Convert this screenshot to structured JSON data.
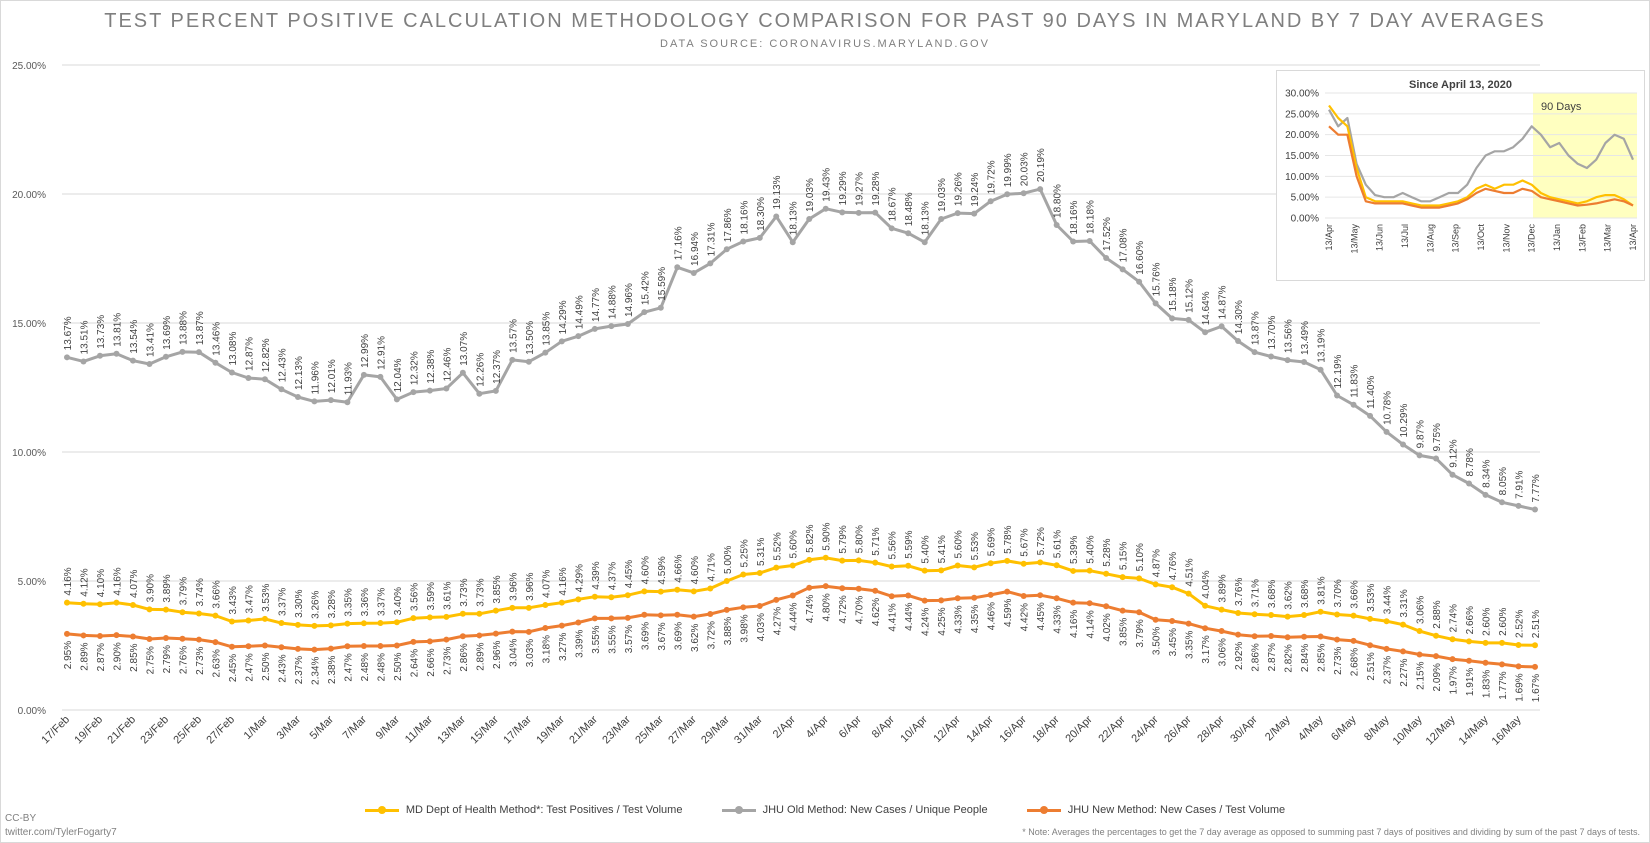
{
  "chart_data": [
    {
      "type": "line",
      "title": "TEST PERCENT POSITIVE CALCULATION METHODOLOGY COMPARISON FOR PAST 90 DAYS IN MARYLAND BY 7 DAY AVERAGES",
      "subtitle": "DATA SOURCE: CORONAVIRUS.MARYLAND.GOV",
      "xlabel": "",
      "ylabel": "",
      "ylim": [
        0,
        25
      ],
      "yticks": [
        "0.00%",
        "5.00%",
        "10.00%",
        "15.00%",
        "20.00%",
        "25.00%"
      ],
      "x_tick_labels": [
        "17/Feb",
        "19/Feb",
        "21/Feb",
        "23/Feb",
        "25/Feb",
        "27/Feb",
        "1/Mar",
        "3/Mar",
        "5/Mar",
        "7/Mar",
        "9/Mar",
        "11/Mar",
        "13/Mar",
        "15/Mar",
        "17/Mar",
        "19/Mar",
        "21/Mar",
        "23/Mar",
        "25/Mar",
        "27/Mar",
        "29/Mar",
        "31/Mar",
        "2/Apr",
        "4/Apr",
        "6/Apr",
        "8/Apr",
        "10/Apr",
        "12/Apr",
        "14/Apr",
        "16/Apr",
        "18/Apr",
        "20/Apr",
        "22/Apr",
        "24/Apr",
        "26/Apr",
        "28/Apr",
        "30/Apr",
        "2/May",
        "4/May",
        "6/May",
        "8/May",
        "10/May",
        "12/May",
        "14/May",
        "16/May"
      ],
      "grid": "horizontal",
      "legend_position": "bottom",
      "series": [
        {
          "name": "JHU Old Method: New Cases / Unique People",
          "color": "#a5a5a5",
          "values": [
            13.67,
            13.51,
            13.73,
            13.81,
            13.54,
            13.41,
            13.69,
            13.88,
            13.87,
            13.46,
            13.08,
            12.87,
            12.82,
            12.43,
            12.13,
            11.96,
            12.01,
            11.93,
            12.99,
            12.91,
            12.04,
            12.32,
            12.38,
            12.46,
            13.07,
            12.26,
            12.37,
            13.57,
            13.5,
            13.85,
            14.29,
            14.49,
            14.77,
            14.88,
            14.96,
            15.42,
            15.59,
            17.16,
            16.94,
            17.31,
            17.86,
            18.16,
            18.3,
            19.13,
            18.13,
            19.03,
            19.43,
            19.29,
            19.27,
            19.28,
            18.67,
            18.48,
            18.13,
            19.03,
            19.26,
            19.24,
            19.72,
            19.99,
            20.03,
            20.19,
            18.8,
            18.16,
            18.18,
            17.52,
            17.08,
            16.6,
            15.76,
            15.18,
            15.12,
            14.64,
            14.87,
            14.3,
            13.87,
            13.7,
            13.56,
            13.49,
            13.19,
            12.19,
            11.83,
            11.4,
            10.78,
            10.29,
            9.87,
            9.75,
            9.12,
            8.78,
            8.34,
            8.05,
            7.91,
            7.77
          ]
        },
        {
          "name": "MD Dept of Health Method*: Test Positives / Test Volume",
          "color": "#ffc000",
          "values": [
            4.16,
            4.12,
            4.1,
            4.16,
            4.07,
            3.9,
            3.89,
            3.79,
            3.74,
            3.66,
            3.43,
            3.47,
            3.53,
            3.37,
            3.3,
            3.26,
            3.28,
            3.35,
            3.36,
            3.37,
            3.4,
            3.56,
            3.59,
            3.61,
            3.73,
            3.73,
            3.85,
            3.96,
            3.96,
            4.07,
            4.16,
            4.29,
            4.39,
            4.37,
            4.45,
            4.6,
            4.59,
            4.66,
            4.6,
            4.71,
            5.0,
            5.25,
            5.31,
            5.52,
            5.6,
            5.82,
            5.9,
            5.79,
            5.8,
            5.71,
            5.56,
            5.59,
            5.4,
            5.41,
            5.6,
            5.53,
            5.69,
            5.78,
            5.67,
            5.72,
            5.61,
            5.39,
            5.4,
            5.28,
            5.15,
            5.1,
            4.87,
            4.76,
            4.51,
            4.04,
            3.89,
            3.76,
            3.71,
            3.68,
            3.62,
            3.68,
            3.81,
            3.7,
            3.66,
            3.53,
            3.44,
            3.31,
            3.06,
            2.88,
            2.74,
            2.66,
            2.6,
            2.6,
            2.52,
            2.51
          ]
        },
        {
          "name": "JHU New Method: New Cases / Test Volume",
          "color": "#ed7d31",
          "values": [
            2.95,
            2.89,
            2.87,
            2.9,
            2.85,
            2.75,
            2.79,
            2.76,
            2.73,
            2.63,
            2.45,
            2.47,
            2.5,
            2.43,
            2.37,
            2.34,
            2.38,
            2.47,
            2.48,
            2.48,
            2.5,
            2.64,
            2.66,
            2.73,
            2.86,
            2.89,
            2.96,
            3.04,
            3.03,
            3.18,
            3.27,
            3.39,
            3.55,
            3.55,
            3.57,
            3.69,
            3.67,
            3.69,
            3.62,
            3.72,
            3.88,
            3.98,
            4.03,
            4.27,
            4.44,
            4.74,
            4.8,
            4.72,
            4.7,
            4.62,
            4.41,
            4.44,
            4.24,
            4.25,
            4.33,
            4.35,
            4.46,
            4.59,
            4.42,
            4.45,
            4.33,
            4.16,
            4.14,
            4.02,
            3.85,
            3.79,
            3.5,
            3.45,
            3.35,
            3.17,
            3.06,
            2.92,
            2.86,
            2.87,
            2.82,
            2.84,
            2.85,
            2.73,
            2.68,
            2.51,
            2.37,
            2.27,
            2.15,
            2.09,
            1.97,
            1.91,
            1.83,
            1.77,
            1.69,
            1.67
          ]
        }
      ]
    },
    {
      "type": "line",
      "title": "Since April 13, 2020",
      "ylim": [
        0,
        30
      ],
      "yticks": [
        "0.00%",
        "5.00%",
        "10.00%",
        "15.00%",
        "20.00%",
        "25.00%",
        "30.00%"
      ],
      "x_tick_labels": [
        "13/Apr",
        "13/May",
        "13/Jun",
        "13/Jul",
        "13/Aug",
        "13/Sep",
        "13/Oct",
        "13/Nov",
        "13/Dec",
        "13/Jan",
        "13/Feb",
        "13/Mar",
        "13/Apr"
      ],
      "highlight_label": "90 Days",
      "highlight_color": "#ffffc0",
      "series": [
        {
          "name": "JHU Old Method: New Cases / Unique People",
          "color": "#a5a5a5",
          "values": [
            26,
            22,
            24,
            13,
            8,
            5.5,
            5,
            5,
            6,
            5,
            4,
            4,
            5,
            6,
            6,
            8,
            12,
            15,
            16,
            16,
            17,
            19,
            22,
            20,
            17,
            18,
            15,
            13,
            12,
            14,
            18,
            20,
            19,
            14
          ]
        },
        {
          "name": "MD Dept of Health Method*: Test Positives / Test Volume",
          "color": "#ffc000",
          "values": [
            27,
            24,
            22,
            12,
            5,
            4,
            4,
            4,
            4,
            3.5,
            3,
            3,
            3,
            3.5,
            4,
            5,
            7,
            8,
            7,
            8,
            8,
            9,
            8,
            6,
            5,
            4.5,
            4,
            3.5,
            4,
            5,
            5.5,
            5.5,
            4.5,
            3
          ]
        },
        {
          "name": "JHU New Method: New Cases / Test Volume",
          "color": "#ed7d31",
          "values": [
            22,
            20,
            20,
            10,
            4,
            3.5,
            3.5,
            3.5,
            3.5,
            3,
            2.5,
            2.5,
            2.5,
            3,
            3.5,
            4.5,
            6,
            7,
            6.5,
            6,
            6,
            7,
            6.5,
            5,
            4.5,
            4,
            3.5,
            3,
            3.2,
            3.5,
            4,
            4.5,
            4,
            3
          ]
        }
      ]
    }
  ],
  "legend": {
    "md_label": "MD Dept of Health Method*: Test Positives / Test Volume",
    "jhu_old_label": "JHU Old Method: New Cases / Unique People",
    "jhu_new_label": "JHU New Method: New Cases / Test Volume",
    "md_color": "#ffc000",
    "jhu_old_color": "#a5a5a5",
    "jhu_new_color": "#ed7d31"
  },
  "credits": {
    "license": "CC-BY",
    "handle": "twitter.com/TylerFogarty7"
  },
  "footnote": "* Note: Averages the percentages to get the 7 day average as opposed to summing past 7 days of positives and dividing by sum of the past 7 days of tests."
}
